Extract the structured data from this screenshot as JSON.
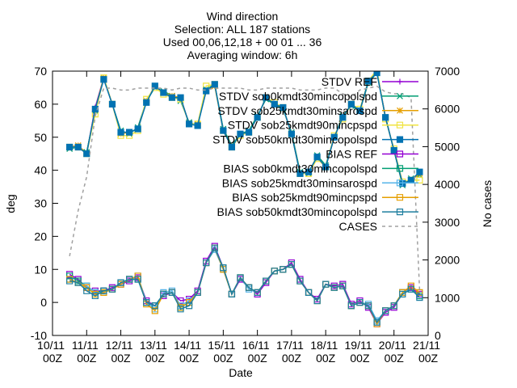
{
  "chart_data": {
    "type": "line",
    "title": [
      "Wind direction",
      "Selection: ALL     187 stations",
      "Used 00,06,12,18 + 00 01 ... 36",
      "Averaging window:  6h"
    ],
    "xlabel": "Date",
    "ylabel": "deg",
    "y2label": "No cases",
    "x": [
      "10/11 12Z",
      "10/11 18Z",
      "11/11 00Z",
      "11/11 06Z",
      "11/11 12Z",
      "11/11 18Z",
      "12/11 00Z",
      "12/11 06Z",
      "12/11 12Z",
      "12/11 18Z",
      "13/11 00Z",
      "13/11 06Z",
      "13/11 12Z",
      "13/11 18Z",
      "14/11 00Z",
      "14/11 06Z",
      "14/11 12Z",
      "14/11 18Z",
      "15/11 00Z",
      "15/11 06Z",
      "15/11 12Z",
      "15/11 18Z",
      "16/11 00Z",
      "16/11 06Z",
      "16/11 12Z",
      "16/11 18Z",
      "17/11 00Z",
      "17/11 06Z",
      "17/11 12Z",
      "17/11 18Z",
      "18/11 00Z",
      "18/11 06Z",
      "18/11 12Z",
      "18/11 18Z",
      "19/11 00Z",
      "19/11 06Z",
      "19/11 12Z",
      "19/11 18Z",
      "20/11 00Z",
      "20/11 06Z",
      "20/11 12Z",
      "20/11 18Z"
    ],
    "xlim": [
      "10/11 00Z",
      "21/11 00Z"
    ],
    "xticks": [
      "10/11 00Z",
      "11/11 00Z",
      "12/11 00Z",
      "13/11 00Z",
      "14/11 00Z",
      "15/11 00Z",
      "16/11 00Z",
      "17/11 00Z",
      "18/11 00Z",
      "19/11 00Z",
      "20/11 00Z",
      "21/11 00Z"
    ],
    "ylim": [
      -10,
      70
    ],
    "yticks": [
      -10,
      0,
      10,
      20,
      30,
      40,
      50,
      60,
      70
    ],
    "y2lim": [
      0,
      7000
    ],
    "y2ticks": [
      0,
      1000,
      2000,
      3000,
      4000,
      5000,
      6000,
      7000
    ],
    "legend": "top-right",
    "series": [
      {
        "name": "STDV REF",
        "color": "#9400d3",
        "marker": "plus",
        "values": [
          47,
          47.5,
          45,
          59,
          68,
          60,
          51.5,
          51.5,
          52.5,
          61,
          65.5,
          63.5,
          62,
          62,
          54,
          54,
          64,
          66,
          52,
          47,
          51,
          51.5,
          56,
          62,
          60,
          59,
          51,
          39,
          39.5,
          44,
          41,
          50,
          56,
          60,
          58,
          67,
          70,
          56,
          46,
          36,
          37,
          39
        ]
      },
      {
        "name": "STDV sob0kmdt30mincopolspd",
        "color": "#009e73",
        "marker": "x",
        "values": [
          46.5,
          47,
          45.5,
          58,
          68,
          60,
          52,
          51,
          53,
          61,
          65,
          64,
          62.5,
          61,
          54.5,
          53.5,
          64.5,
          66,
          52.5,
          47.5,
          51,
          52,
          56.5,
          61.5,
          60,
          58.5,
          51.5,
          39.5,
          39,
          44.5,
          41.5,
          50,
          56.5,
          59.5,
          58,
          66.5,
          69.5,
          56,
          46,
          35.5,
          37.5,
          38.5
        ]
      },
      {
        "name": "STDV sob25kmdt30minsarospd",
        "color": "#e69f00",
        "marker": "star",
        "values": [
          47,
          47.5,
          45,
          58.5,
          68,
          60,
          51,
          51.5,
          52.5,
          61,
          65.5,
          63.5,
          62.5,
          62,
          54,
          54,
          64,
          65.5,
          52,
          47,
          51,
          51.5,
          56,
          62,
          60,
          59,
          51,
          39,
          39.5,
          44,
          41,
          50,
          56,
          60,
          58,
          67,
          70,
          56,
          46,
          36,
          37,
          39
        ]
      },
      {
        "name": "STDV sob25kmdt90mincpspd",
        "color": "#f0e442",
        "marker": "square",
        "values": [
          47,
          47,
          45,
          57,
          68,
          60,
          50.5,
          50.5,
          52,
          61.5,
          65,
          63,
          62,
          61.5,
          54,
          54,
          65.5,
          66,
          52,
          47,
          50.5,
          51.5,
          56,
          62,
          60.5,
          59,
          51,
          39,
          39,
          43.5,
          41,
          50.5,
          55.5,
          60,
          58.5,
          67,
          70.5,
          55.5,
          46.5,
          36.5,
          37,
          37
        ]
      },
      {
        "name": "STDV sob50kmdt30mincopolspd",
        "color": "#0072b2",
        "marker": "filled-square",
        "values": [
          47,
          47,
          45,
          58.5,
          67.5,
          60,
          51.5,
          51.5,
          52.5,
          60.5,
          65.5,
          63.5,
          62,
          62,
          54,
          53.5,
          64,
          66,
          52,
          47,
          51,
          51.5,
          56,
          62,
          60,
          59,
          51,
          39,
          39.5,
          44,
          41,
          50,
          56,
          60,
          58,
          67,
          69.5,
          56,
          46,
          36,
          37,
          39.5
        ]
      },
      {
        "name": "BIAS REF",
        "color": "#9400d3",
        "marker": "square",
        "values": [
          8.5,
          7,
          4.5,
          3.5,
          3.5,
          4.5,
          5.5,
          6.5,
          7.5,
          0.5,
          -1,
          2,
          3,
          0.5,
          1,
          3.5,
          12.5,
          17,
          10.5,
          2.5,
          7,
          4.5,
          2.5,
          6,
          9.5,
          10,
          12,
          7,
          3,
          1,
          5.5,
          5,
          5.5,
          -0.5,
          0.5,
          -1.5,
          -6.5,
          -3,
          -1.5,
          3,
          4.5,
          2.5
        ]
      },
      {
        "name": "BIAS sob0kmdt30mincopolspd",
        "color": "#009e73",
        "marker": "square",
        "values": [
          8,
          6.5,
          5,
          3,
          3.5,
          4,
          6,
          7,
          7,
          0,
          -1,
          2.5,
          3,
          -1.5,
          0,
          3,
          12,
          16.5,
          10.5,
          2.5,
          7.5,
          4.5,
          3,
          6.5,
          9.5,
          10,
          11.5,
          6.5,
          3,
          0.5,
          5.5,
          4.5,
          5,
          -1,
          0,
          -1,
          -6,
          -2.5,
          -1,
          3,
          4,
          2
        ]
      },
      {
        "name": "BIAS sob25kmdt30minsarospd",
        "color": "#56b4e9",
        "marker": "square",
        "values": [
          7,
          6,
          5,
          3,
          3,
          4,
          6,
          7,
          8,
          0,
          -2,
          3,
          3.5,
          -1,
          0.5,
          3,
          12,
          16,
          10,
          2.5,
          7.5,
          4,
          3,
          6.5,
          9.5,
          10,
          11.5,
          6.5,
          3,
          0.5,
          5.5,
          4.5,
          5,
          -1,
          0,
          -0.5,
          -5.5,
          -2.5,
          -1,
          3,
          4,
          1.5
        ]
      },
      {
        "name": "BIAS sob25kmdt90mincpspd",
        "color": "#e69f00",
        "marker": "square",
        "values": [
          7,
          6,
          4.5,
          2.5,
          3,
          4,
          5.5,
          7,
          8,
          -0.5,
          -2.5,
          2.5,
          3,
          -1.5,
          0,
          3,
          12,
          16.5,
          10,
          2.5,
          7.5,
          4.5,
          3,
          6.5,
          9.5,
          10,
          11.5,
          6.5,
          3,
          0.5,
          5.5,
          4.5,
          5,
          -1,
          0,
          -1,
          -6.5,
          -2.5,
          -1,
          3,
          5,
          3
        ]
      },
      {
        "name": "BIAS sob50kmdt30mincopolspd",
        "color": "#1f7f9f",
        "marker": "square",
        "values": [
          6.5,
          6,
          3.5,
          2,
          3.5,
          4,
          6,
          7,
          7,
          0,
          -1,
          2.5,
          3,
          -2,
          -1,
          3,
          12,
          16.5,
          10.5,
          2.5,
          7.5,
          4.5,
          3,
          6.5,
          9.5,
          10,
          11.5,
          6.5,
          3,
          0.5,
          5.5,
          4.5,
          5,
          -1,
          0,
          -1,
          -6,
          -2.5,
          -1,
          2.5,
          4,
          1.5
        ]
      },
      {
        "name": "CASES",
        "color": "#a0a0a0",
        "marker": "none",
        "dash": true,
        "axis": "y2",
        "values": [
          2100,
          3300,
          4200,
          5800,
          6550,
          6550,
          6500,
          6500,
          6550,
          6550,
          6550,
          6550,
          6500,
          6550,
          6550,
          6500,
          6500,
          6550,
          6550,
          6550,
          6550,
          6500,
          6500,
          6550,
          6550,
          6550,
          6550,
          6500,
          6500,
          6500,
          6550,
          6550,
          6400,
          6300,
          6500,
          6550,
          6600,
          6450,
          6400,
          6400,
          6300,
          1200
        ]
      }
    ]
  }
}
